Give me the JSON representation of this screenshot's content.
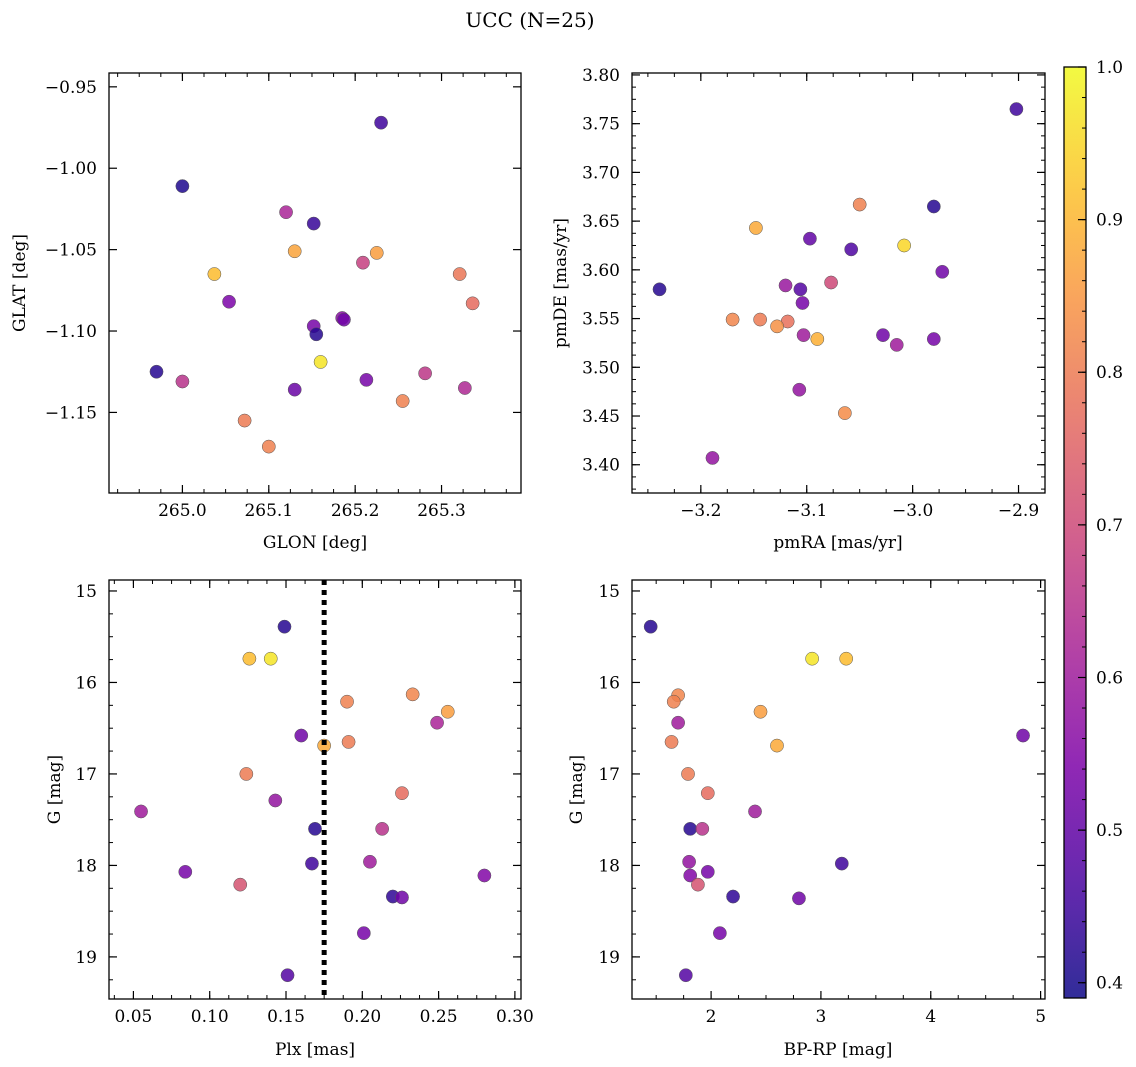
{
  "figure": {
    "title": "UCC (N=25)"
  },
  "colorbar": {
    "colormap": "plasma",
    "vmin": 0.39,
    "vmax": 1.0,
    "ticks": [
      0.4,
      0.5,
      0.6,
      0.7,
      0.8,
      0.9,
      1.0
    ],
    "tick_labels": [
      "0.4",
      "0.5",
      "0.6",
      "0.7",
      "0.8",
      "0.9",
      "1.0"
    ]
  },
  "chart_data": [
    {
      "type": "scatter",
      "id": "glon-glat",
      "xlabel": "GLON [deg]",
      "ylabel": "GLAT [deg]",
      "xlim": [
        264.915,
        265.392
      ],
      "ylim": [
        -1.1995,
        -0.9415
      ],
      "invert_y": false,
      "xticks": [
        265.0,
        265.1,
        265.2,
        265.3
      ],
      "xtick_labels": [
        "265.0",
        "265.1",
        "265.2",
        "265.3"
      ],
      "yticks": [
        -0.95,
        -1.0,
        -1.05,
        -1.1,
        -1.15
      ],
      "ytick_labels": [
        "−0.95",
        "−1.00",
        "−1.05",
        "−1.10",
        "−1.15"
      ],
      "points": [
        {
          "x": 265.23,
          "y": -0.972,
          "c": 0.45
        },
        {
          "x": 265.0,
          "y": -1.011,
          "c": 0.41
        },
        {
          "x": 265.12,
          "y": -1.027,
          "c": 0.62
        },
        {
          "x": 265.152,
          "y": -1.034,
          "c": 0.44
        },
        {
          "x": 265.13,
          "y": -1.051,
          "c": 0.87
        },
        {
          "x": 265.225,
          "y": -1.052,
          "c": 0.86
        },
        {
          "x": 265.209,
          "y": -1.058,
          "c": 0.68
        },
        {
          "x": 265.037,
          "y": -1.065,
          "c": 0.91
        },
        {
          "x": 265.321,
          "y": -1.065,
          "c": 0.79
        },
        {
          "x": 265.054,
          "y": -1.082,
          "c": 0.54
        },
        {
          "x": 265.336,
          "y": -1.083,
          "c": 0.77
        },
        {
          "x": 265.185,
          "y": -1.092,
          "c": 0.56
        },
        {
          "x": 265.187,
          "y": -1.093,
          "c": 0.52
        },
        {
          "x": 265.152,
          "y": -1.097,
          "c": 0.53
        },
        {
          "x": 265.155,
          "y": -1.102,
          "c": 0.42
        },
        {
          "x": 265.16,
          "y": -1.119,
          "c": 0.97
        },
        {
          "x": 264.97,
          "y": -1.125,
          "c": 0.42
        },
        {
          "x": 265.281,
          "y": -1.126,
          "c": 0.66
        },
        {
          "x": 265.0,
          "y": -1.131,
          "c": 0.65
        },
        {
          "x": 265.213,
          "y": -1.13,
          "c": 0.53
        },
        {
          "x": 265.13,
          "y": -1.136,
          "c": 0.51
        },
        {
          "x": 265.327,
          "y": -1.135,
          "c": 0.63
        },
        {
          "x": 265.255,
          "y": -1.143,
          "c": 0.81
        },
        {
          "x": 265.072,
          "y": -1.155,
          "c": 0.8
        },
        {
          "x": 265.1,
          "y": -1.171,
          "c": 0.81
        }
      ]
    },
    {
      "type": "scatter",
      "id": "pmra-pmde",
      "xlabel": "pmRA [mas/yr]",
      "ylabel": "pmDE [mas/yr]",
      "xlim": [
        -3.265,
        -2.875
      ],
      "ylim": [
        3.371,
        3.802
      ],
      "invert_y": false,
      "xticks": [
        -3.2,
        -3.1,
        -3.0,
        -2.9
      ],
      "xtick_labels": [
        "−3.2",
        "−3.1",
        "−3.0",
        "−2.9"
      ],
      "yticks": [
        3.4,
        3.45,
        3.5,
        3.55,
        3.6,
        3.65,
        3.7,
        3.75,
        3.8
      ],
      "ytick_labels": [
        "3.40",
        "3.45",
        "3.50",
        "3.55",
        "3.60",
        "3.65",
        "3.70",
        "3.75",
        "3.80"
      ],
      "points": [
        {
          "x": -2.902,
          "y": 3.765,
          "c": 0.45
        },
        {
          "x": -3.05,
          "y": 3.667,
          "c": 0.81
        },
        {
          "x": -2.98,
          "y": 3.665,
          "c": 0.42
        },
        {
          "x": -3.148,
          "y": 3.643,
          "c": 0.88
        },
        {
          "x": -3.097,
          "y": 3.632,
          "c": 0.5
        },
        {
          "x": -3.008,
          "y": 3.625,
          "c": 0.95
        },
        {
          "x": -3.058,
          "y": 3.621,
          "c": 0.47
        },
        {
          "x": -2.972,
          "y": 3.598,
          "c": 0.52
        },
        {
          "x": -3.077,
          "y": 3.587,
          "c": 0.7
        },
        {
          "x": -3.12,
          "y": 3.584,
          "c": 0.59
        },
        {
          "x": -3.106,
          "y": 3.58,
          "c": 0.48
        },
        {
          "x": -3.239,
          "y": 3.58,
          "c": 0.42
        },
        {
          "x": -3.104,
          "y": 3.566,
          "c": 0.53
        },
        {
          "x": -3.17,
          "y": 3.549,
          "c": 0.82
        },
        {
          "x": -3.144,
          "y": 3.549,
          "c": 0.8
        },
        {
          "x": -3.118,
          "y": 3.547,
          "c": 0.78
        },
        {
          "x": -3.128,
          "y": 3.542,
          "c": 0.84
        },
        {
          "x": -3.103,
          "y": 3.533,
          "c": 0.6
        },
        {
          "x": -3.028,
          "y": 3.533,
          "c": 0.52
        },
        {
          "x": -3.09,
          "y": 3.529,
          "c": 0.89
        },
        {
          "x": -2.98,
          "y": 3.529,
          "c": 0.53
        },
        {
          "x": -3.015,
          "y": 3.523,
          "c": 0.6
        },
        {
          "x": -3.107,
          "y": 3.477,
          "c": 0.58
        },
        {
          "x": -3.064,
          "y": 3.453,
          "c": 0.83
        },
        {
          "x": -3.189,
          "y": 3.407,
          "c": 0.58
        }
      ]
    },
    {
      "type": "scatter",
      "id": "plx-g",
      "xlabel": "Plx [mas]",
      "ylabel": "G [mag]",
      "xlim": [
        0.034,
        0.304
      ],
      "ylim": [
        14.88,
        19.46
      ],
      "invert_y": true,
      "vline": {
        "x": 0.175,
        "style": "dotted"
      },
      "xticks": [
        0.05,
        0.1,
        0.15,
        0.2,
        0.25,
        0.3
      ],
      "xtick_labels": [
        "0.05",
        "0.10",
        "0.15",
        "0.20",
        "0.25",
        "0.30"
      ],
      "yticks": [
        15,
        16,
        17,
        18,
        19
      ],
      "ytick_labels": [
        "15",
        "16",
        "17",
        "18",
        "19"
      ],
      "points": [
        {
          "x": 0.149,
          "y": 15.39,
          "c": 0.42
        },
        {
          "x": 0.126,
          "y": 15.74,
          "c": 0.91
        },
        {
          "x": 0.14,
          "y": 15.74,
          "c": 0.97
        },
        {
          "x": 0.233,
          "y": 16.13,
          "c": 0.82
        },
        {
          "x": 0.19,
          "y": 16.21,
          "c": 0.81
        },
        {
          "x": 0.256,
          "y": 16.32,
          "c": 0.86
        },
        {
          "x": 0.249,
          "y": 16.44,
          "c": 0.62
        },
        {
          "x": 0.16,
          "y": 16.58,
          "c": 0.52
        },
        {
          "x": 0.191,
          "y": 16.65,
          "c": 0.8
        },
        {
          "x": 0.175,
          "y": 16.69,
          "c": 0.88
        },
        {
          "x": 0.124,
          "y": 17.0,
          "c": 0.8
        },
        {
          "x": 0.226,
          "y": 17.21,
          "c": 0.77
        },
        {
          "x": 0.143,
          "y": 17.29,
          "c": 0.58
        },
        {
          "x": 0.055,
          "y": 17.41,
          "c": 0.6
        },
        {
          "x": 0.169,
          "y": 17.6,
          "c": 0.42
        },
        {
          "x": 0.213,
          "y": 17.6,
          "c": 0.65
        },
        {
          "x": 0.167,
          "y": 17.98,
          "c": 0.45
        },
        {
          "x": 0.205,
          "y": 17.96,
          "c": 0.6
        },
        {
          "x": 0.084,
          "y": 18.07,
          "c": 0.53
        },
        {
          "x": 0.28,
          "y": 18.11,
          "c": 0.55
        },
        {
          "x": 0.12,
          "y": 18.21,
          "c": 0.72
        },
        {
          "x": 0.22,
          "y": 18.34,
          "c": 0.43
        },
        {
          "x": 0.226,
          "y": 18.35,
          "c": 0.52
        },
        {
          "x": 0.201,
          "y": 18.74,
          "c": 0.53
        },
        {
          "x": 0.151,
          "y": 19.2,
          "c": 0.48
        }
      ]
    },
    {
      "type": "scatter",
      "id": "bprp-g",
      "xlabel": "BP-RP [mag]",
      "ylabel": "G [mag]",
      "xlim": [
        1.28,
        5.04
      ],
      "ylim": [
        14.88,
        19.46
      ],
      "invert_y": true,
      "xticks": [
        2,
        3,
        4,
        5
      ],
      "xtick_labels": [
        "2",
        "3",
        "4",
        "5"
      ],
      "yticks": [
        15,
        16,
        17,
        18,
        19
      ],
      "ytick_labels": [
        "15",
        "16",
        "17",
        "18",
        "19"
      ],
      "points": [
        {
          "x": 1.45,
          "y": 15.39,
          "c": 0.42
        },
        {
          "x": 2.92,
          "y": 15.74,
          "c": 0.97
        },
        {
          "x": 3.23,
          "y": 15.74,
          "c": 0.91
        },
        {
          "x": 1.7,
          "y": 16.14,
          "c": 0.82
        },
        {
          "x": 1.66,
          "y": 16.21,
          "c": 0.81
        },
        {
          "x": 2.45,
          "y": 16.32,
          "c": 0.86
        },
        {
          "x": 1.7,
          "y": 16.44,
          "c": 0.6
        },
        {
          "x": 4.84,
          "y": 16.58,
          "c": 0.52
        },
        {
          "x": 1.64,
          "y": 16.65,
          "c": 0.8
        },
        {
          "x": 2.6,
          "y": 16.69,
          "c": 0.88
        },
        {
          "x": 1.79,
          "y": 17.0,
          "c": 0.8
        },
        {
          "x": 1.97,
          "y": 17.21,
          "c": 0.77
        },
        {
          "x": 2.4,
          "y": 17.41,
          "c": 0.6
        },
        {
          "x": 1.81,
          "y": 17.6,
          "c": 0.42
        },
        {
          "x": 1.92,
          "y": 17.6,
          "c": 0.65
        },
        {
          "x": 3.19,
          "y": 17.98,
          "c": 0.45
        },
        {
          "x": 1.8,
          "y": 17.96,
          "c": 0.58
        },
        {
          "x": 1.97,
          "y": 18.07,
          "c": 0.53
        },
        {
          "x": 1.81,
          "y": 18.11,
          "c": 0.55
        },
        {
          "x": 1.88,
          "y": 18.21,
          "c": 0.72
        },
        {
          "x": 2.2,
          "y": 18.34,
          "c": 0.43
        },
        {
          "x": 2.8,
          "y": 18.36,
          "c": 0.52
        },
        {
          "x": 2.08,
          "y": 18.74,
          "c": 0.53
        },
        {
          "x": 1.77,
          "y": 19.2,
          "c": 0.48
        }
      ]
    }
  ]
}
